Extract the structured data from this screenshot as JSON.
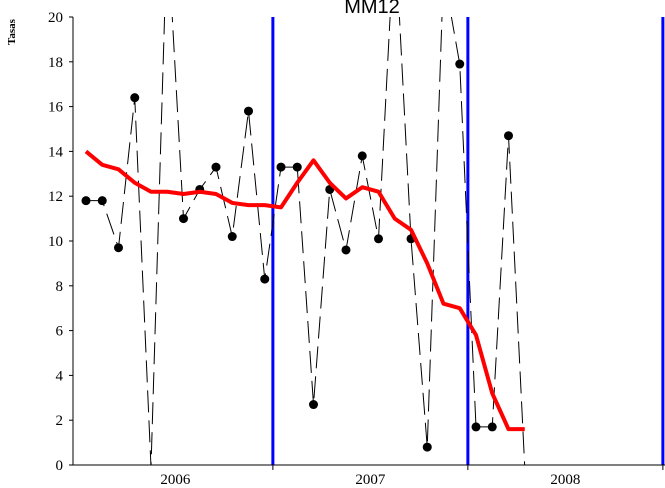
{
  "chart_data": {
    "type": "line",
    "title": "MM12",
    "ylabel": "Tasas",
    "xlabel": "",
    "ylim": [
      0,
      20
    ],
    "yticks": [
      0,
      2,
      4,
      6,
      8,
      10,
      12,
      14,
      16,
      18,
      20
    ],
    "year_labels": [
      "2006",
      "2007",
      "2008"
    ],
    "months": [
      1,
      2,
      3,
      4,
      5,
      6,
      7,
      8,
      9,
      10,
      11,
      12,
      13,
      14,
      15,
      16,
      17,
      18,
      19,
      20,
      21,
      22,
      23,
      24,
      25,
      26,
      27,
      28,
      29
    ],
    "series": [
      {
        "style": "dashed-with-markers",
        "color": "#000000",
        "values": [
          11.8,
          11.8,
          9.7,
          16.4,
          -0.1,
          24.0,
          11.0,
          12.3,
          13.3,
          10.2,
          15.8,
          8.3,
          13.3,
          13.3,
          2.7,
          12.3,
          9.6,
          13.8,
          10.1,
          24.0,
          10.1,
          0.8,
          22.0,
          17.9,
          1.7,
          1.7,
          14.7,
          -0.1,
          null
        ]
      },
      {
        "style": "solid-thick",
        "color": "#ff0000",
        "values": [
          14.0,
          13.4,
          13.2,
          12.6,
          12.2,
          12.2,
          12.1,
          12.2,
          12.1,
          11.7,
          11.6,
          11.6,
          11.5,
          12.6,
          13.6,
          12.6,
          11.9,
          12.4,
          12.2,
          11.0,
          10.5,
          9.0,
          7.2,
          7.0,
          5.8,
          3.2,
          1.6,
          1.6,
          null
        ]
      }
    ],
    "vlines": [
      {
        "month": 12.5,
        "color": "#0000ff"
      },
      {
        "month": 24.5,
        "color": "#0000ff"
      },
      {
        "month": 36.5,
        "color": "#0000ff"
      }
    ],
    "grid": false
  }
}
